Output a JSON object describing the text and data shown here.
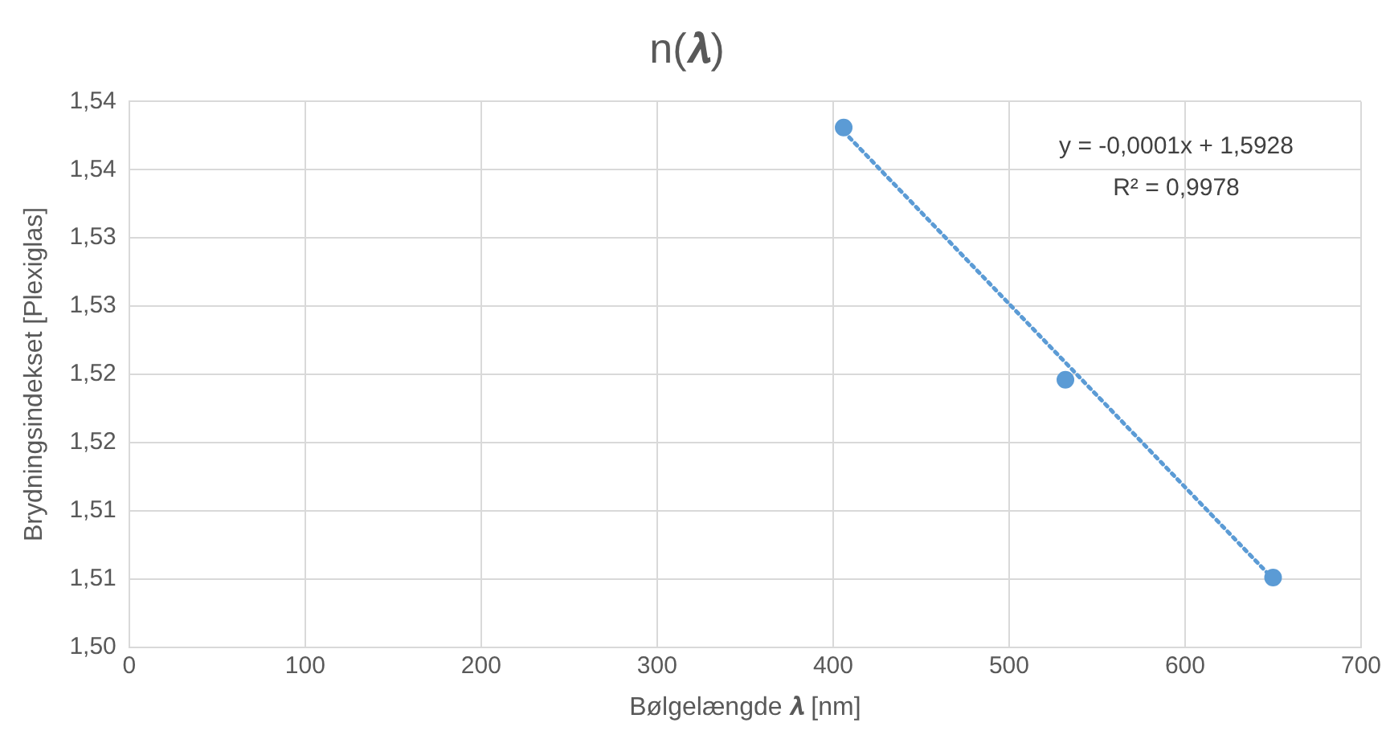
{
  "chart_data": {
    "type": "scatter",
    "title": "n(𝝀)",
    "xlabel": "Bølgelængde 𝝀 [nm]",
    "ylabel": "Brydningsindekset [Plexiglas]",
    "series": [
      {
        "color": "#5b9bd5",
        "x": [
          406,
          532,
          650
        ],
        "values": [
          1.5381,
          1.5196,
          1.5051
        ],
        "marker": "circle"
      },
      {
        "type": "line",
        "color": "#5b9bd5",
        "x": [
          406,
          650
        ],
        "values": [
          1.5378,
          1.505
        ],
        "line_style": "dotted",
        "marker": "none"
      }
    ],
    "xlim": [
      0,
      700
    ],
    "xticks": [
      0,
      100,
      200,
      300,
      400,
      500,
      600,
      700
    ],
    "ylim": [
      1.5,
      1.54
    ],
    "yticks": [
      {
        "value": 1.5,
        "label": "1,50"
      },
      {
        "value": 1.505,
        "label": "1,51"
      },
      {
        "value": 1.51,
        "label": "1,51"
      },
      {
        "value": 1.515,
        "label": "1,52"
      },
      {
        "value": 1.52,
        "label": "1,52"
      },
      {
        "value": 1.525,
        "label": "1,53"
      },
      {
        "value": 1.53,
        "label": "1,53"
      },
      {
        "value": 1.535,
        "label": "1,54"
      },
      {
        "value": 1.54,
        "label": "1,54"
      }
    ],
    "grid": true,
    "legend": false,
    "annotations": [
      "y = -0,0001x + 1,5928",
      "R² = 0,9978"
    ]
  }
}
